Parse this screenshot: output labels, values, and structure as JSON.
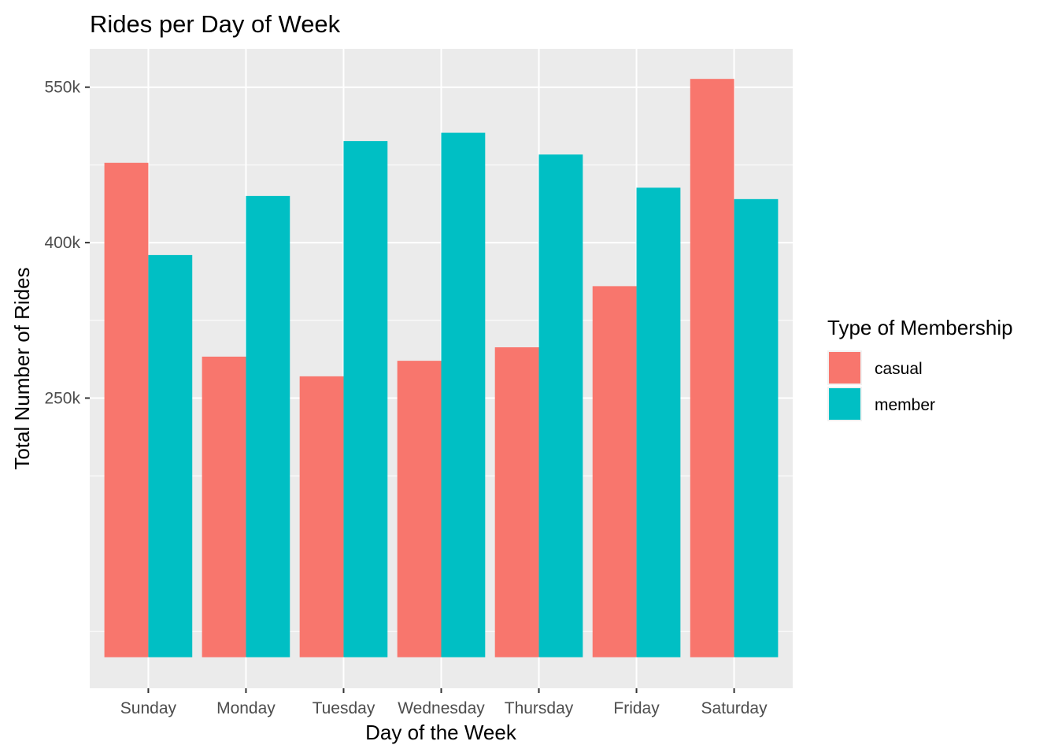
{
  "chart_data": {
    "type": "bar",
    "title": "Rides per Day of Week",
    "xlabel": "Day of the Week",
    "ylabel": "Total Number of Rides",
    "categories": [
      "Sunday",
      "Monday",
      "Tuesday",
      "Wednesday",
      "Thursday",
      "Friday",
      "Saturday"
    ],
    "series": [
      {
        "name": "casual",
        "color": "#F8766D",
        "values": [
          477000,
          290000,
          271000,
          286000,
          299000,
          358000,
          558000
        ]
      },
      {
        "name": "member",
        "color": "#00BFC4",
        "values": [
          388000,
          445000,
          498000,
          506000,
          485000,
          453000,
          442000
        ]
      }
    ],
    "ylim": [
      -30000,
      587000
    ],
    "yticks": [
      250000,
      400000,
      550000
    ],
    "ytick_labels": [
      "250k",
      "400k",
      "550k"
    ],
    "grid": true,
    "legend": {
      "title": "Type of Membership",
      "position": "right"
    }
  }
}
